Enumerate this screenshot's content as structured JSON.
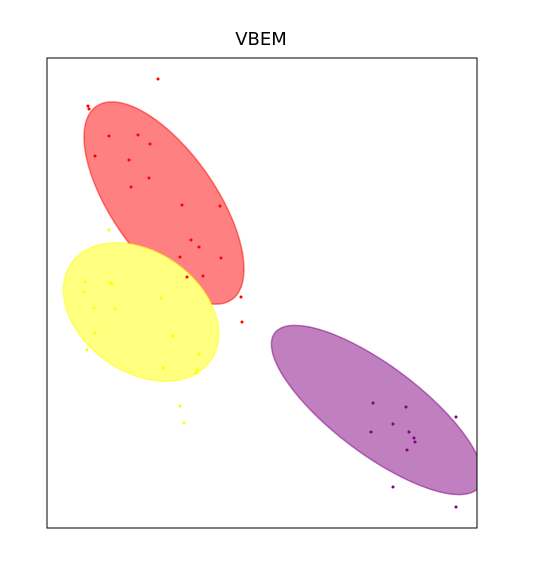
{
  "chart_data": {
    "type": "scatter",
    "title": "VBEM",
    "xlabel": "",
    "ylabel": "",
    "xlim": [
      0,
      430
    ],
    "ylim": [
      0,
      470
    ],
    "grid": false,
    "ticks_shown": false,
    "clusters": [
      {
        "color": "#ff0000",
        "fill": "#ff8080",
        "center": [
          117,
          325
        ],
        "radii": [
          118,
          52
        ],
        "angle": 55,
        "points": [
          [
            111,
            449
          ],
          [
            41,
            422
          ],
          [
            42,
            419
          ],
          [
            62,
            392
          ],
          [
            91,
            393
          ],
          [
            103,
            384
          ],
          [
            48,
            372
          ],
          [
            82,
            368
          ],
          [
            102,
            350
          ],
          [
            84,
            341
          ],
          [
            173,
            322
          ],
          [
            135,
            323
          ],
          [
            144,
            288
          ],
          [
            152,
            281
          ],
          [
            133,
            271
          ],
          [
            174,
            270
          ],
          [
            140,
            251
          ],
          [
            156,
            252
          ],
          [
            194,
            231
          ],
          [
            195,
            206
          ]
        ]
      },
      {
        "color": "#ffff00",
        "fill": "#ffff80",
        "center": [
          94,
          216
        ],
        "radii": [
          85,
          60
        ],
        "angle": 35,
        "points": [
          [
            62,
            298
          ],
          [
            38,
            246
          ],
          [
            63,
            245
          ],
          [
            37,
            236
          ],
          [
            65,
            244
          ],
          [
            47,
            220
          ],
          [
            68,
            219
          ],
          [
            114,
            230
          ],
          [
            48,
            195
          ],
          [
            126,
            192
          ],
          [
            152,
            174
          ],
          [
            40,
            178
          ],
          [
            116,
            160
          ],
          [
            149,
            155
          ],
          [
            150,
            158
          ],
          [
            133,
            122
          ],
          [
            137,
            105
          ]
        ]
      },
      {
        "color": "#800080",
        "fill": "#c080c0",
        "center": [
          330,
          118
        ],
        "radii": [
          128,
          44
        ],
        "angle": 37,
        "points": [
          [
            326,
            125
          ],
          [
            359,
            121
          ],
          [
            409,
            111
          ],
          [
            346,
            104
          ],
          [
            324,
            96
          ],
          [
            362,
            96
          ],
          [
            367,
            90
          ],
          [
            368,
            86
          ],
          [
            360,
            78
          ],
          [
            346,
            41
          ],
          [
            409,
            21
          ]
        ]
      }
    ]
  }
}
